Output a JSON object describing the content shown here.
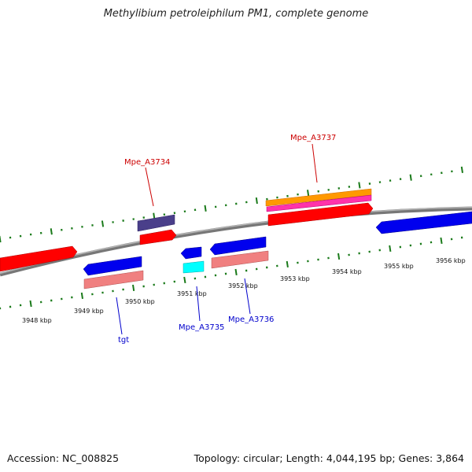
{
  "title": "Methylibium petroleiphilum PM1, complete genome",
  "footer": {
    "accession": "Accession: NC_008825",
    "summary": "Topology: circular; Length: 4,044,195 bp; Genes: 3,864"
  },
  "scale_labels": [
    "3948 kbp",
    "3949 kbp",
    "3950 kbp",
    "3951 kbp",
    "3952 kbp",
    "3953 kbp",
    "3954 kbp",
    "3955 kbp",
    "3956 kbp"
  ],
  "gene_labels": {
    "mpe_a3734": "Mpe_A3734",
    "mpe_a3737": "Mpe_A3737",
    "tgt": "tgt",
    "mpe_a3735": "Mpe_A3735",
    "mpe_a3736": "Mpe_A3736"
  },
  "colors": {
    "forward_cds": "#ff0000",
    "reverse_cds": "#0000ee",
    "dark_feature": "#4a3f8a",
    "salmon_feature": "#f08080",
    "cyan_feature": "#00ffff",
    "orange_feature": "#ff9900",
    "magenta_feature": "#ff33aa",
    "tick_color": "#1a7a1a",
    "backbone": "#888888",
    "forward_label": "#cc0000",
    "reverse_label": "#0000cc"
  }
}
